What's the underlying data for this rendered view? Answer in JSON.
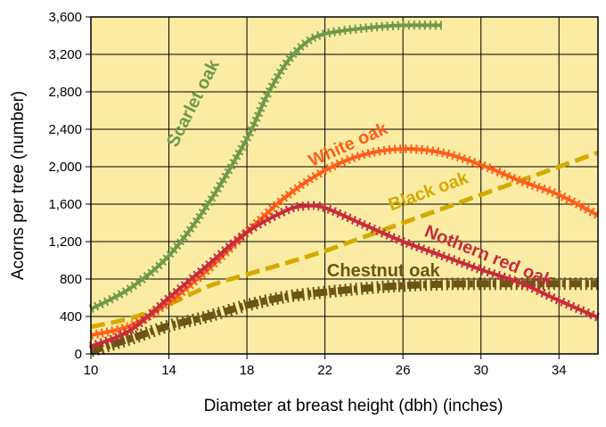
{
  "chart_data": {
    "type": "line",
    "xlabel": "Diameter at breast height (dbh) (inches)",
    "ylabel": "Acorns per tree (number)",
    "xlim": [
      10,
      36
    ],
    "ylim": [
      0,
      3600
    ],
    "xticks": [
      10,
      14,
      18,
      22,
      26,
      30,
      34
    ],
    "xtick_labels": [
      "10",
      "14",
      "18",
      "22",
      "26",
      "30",
      "34"
    ],
    "yticks": [
      0,
      400,
      800,
      1200,
      1600,
      2000,
      2400,
      2800,
      3200,
      3600
    ],
    "ytick_labels": [
      "0",
      "400",
      "800",
      "1,200",
      "1,600",
      "2,000",
      "2,400",
      "2,800",
      "3,200",
      "3,600"
    ],
    "grid": true,
    "background_color": "#fbeca4",
    "series": [
      {
        "name": "Scarlet oak",
        "color": "#6e9a4b",
        "style": "tick-dashed",
        "x": [
          10,
          12,
          14,
          16,
          18,
          19,
          20,
          21,
          22,
          24,
          26,
          28
        ],
        "y": [
          480,
          700,
          1050,
          1600,
          2300,
          2750,
          3100,
          3320,
          3420,
          3480,
          3510,
          3510
        ]
      },
      {
        "name": "White oak",
        "color": "#ff5e1a",
        "style": "tick-dashed",
        "x": [
          10,
          12,
          14,
          16,
          18,
          20,
          22,
          24,
          26,
          28,
          30,
          32,
          34,
          36
        ],
        "y": [
          200,
          300,
          550,
          900,
          1300,
          1680,
          1960,
          2130,
          2190,
          2150,
          2020,
          1850,
          1700,
          1480
        ]
      },
      {
        "name": "Black oak",
        "color": "#d4aa00",
        "style": "dashed",
        "x": [
          10,
          12,
          14,
          16,
          18,
          20,
          22,
          24,
          26,
          28,
          30,
          32,
          34,
          36
        ],
        "y": [
          290,
          380,
          530,
          720,
          850,
          970,
          1100,
          1250,
          1400,
          1550,
          1700,
          1850,
          2000,
          2150
        ]
      },
      {
        "name": "Nothern red oak",
        "color": "#c72c3c",
        "style": "tick-dashed",
        "x": [
          10,
          12,
          14,
          16,
          18,
          20,
          21,
          22,
          24,
          26,
          28,
          30,
          32,
          34,
          36
        ],
        "y": [
          80,
          250,
          600,
          950,
          1300,
          1530,
          1580,
          1560,
          1380,
          1200,
          1050,
          900,
          760,
          570,
          390
        ]
      },
      {
        "name": "Chestnut oak",
        "color": "#6b5516",
        "style": "tick-dashed",
        "x": [
          10,
          12,
          14,
          16,
          18,
          20,
          22,
          24,
          26,
          28,
          30,
          32,
          34,
          36
        ],
        "y": [
          30,
          160,
          300,
          400,
          520,
          610,
          660,
          700,
          730,
          745,
          750,
          750,
          750,
          750
        ]
      }
    ],
    "series_labels": [
      {
        "text": "Scarlet oak",
        "series": "Scarlet oak"
      },
      {
        "text": "White oak",
        "series": "White oak"
      },
      {
        "text": "Black oak",
        "series": "Black oak"
      },
      {
        "text": "Nothern red oak",
        "series": "Nothern red oak"
      },
      {
        "text": "Chestnut oak",
        "series": "Chestnut oak"
      }
    ]
  }
}
